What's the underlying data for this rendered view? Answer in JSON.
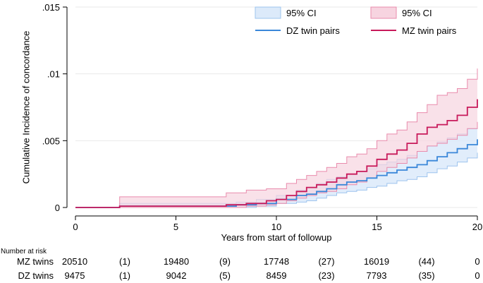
{
  "chart_data": {
    "type": "line",
    "title": "",
    "xlabel": "Years from start of followup",
    "ylabel": "Cumulative Incidence of concordance",
    "xlim": [
      0,
      20
    ],
    "ylim": [
      0,
      0.015
    ],
    "x_ticks": [
      {
        "value": 0,
        "label": "0"
      },
      {
        "value": 5,
        "label": "5"
      },
      {
        "value": 10,
        "label": "10"
      },
      {
        "value": 15,
        "label": "15"
      },
      {
        "value": 20,
        "label": "20"
      }
    ],
    "y_ticks": [
      {
        "value": 0,
        "label": "0"
      },
      {
        "value": 0.005,
        "label": ".005"
      },
      {
        "value": 0.01,
        "label": ".01"
      },
      {
        "value": 0.015,
        "label": ".015"
      }
    ],
    "grid": "horizontal",
    "legend_position": "top-right",
    "series": [
      {
        "key": "dz",
        "name": "DZ twin pairs",
        "ci_label": "95% CI",
        "line_color": "#3a87d9",
        "band_color": "#dceafa",
        "band_edge_color": "#9ec4ee",
        "x": [
          0,
          2.2,
          2.2,
          7,
          8,
          9,
          10,
          11,
          11.5,
          12,
          12.5,
          13,
          13.5,
          14,
          14.5,
          15,
          15.5,
          16,
          16.5,
          17,
          17.5,
          18,
          18.5,
          19,
          19.5,
          20
        ],
        "y": [
          0,
          0,
          0.0001,
          0.0001,
          0.0002,
          0.0003,
          0.0006,
          0.0009,
          0.001,
          0.0012,
          0.0014,
          0.0017,
          0.0019,
          0.002,
          0.0022,
          0.0024,
          0.0026,
          0.0028,
          0.003,
          0.0032,
          0.0035,
          0.0038,
          0.0041,
          0.0044,
          0.0047,
          0.0051
        ],
        "ci_lower": [
          0,
          0,
          0,
          0,
          0,
          0.0001,
          0.0003,
          0.0004,
          0.0005,
          0.0007,
          0.0009,
          0.0011,
          0.0012,
          0.0013,
          0.0015,
          0.0016,
          0.0018,
          0.002,
          0.0021,
          0.0023,
          0.0026,
          0.0029,
          0.0031,
          0.0034,
          0.0037,
          0.0041
        ],
        "ci_upper": [
          0,
          0,
          0.0003,
          0.0003,
          0.0004,
          0.0006,
          0.0009,
          0.0013,
          0.0015,
          0.0018,
          0.0021,
          0.0023,
          0.0025,
          0.0027,
          0.0029,
          0.0032,
          0.0034,
          0.0036,
          0.0039,
          0.0042,
          0.0046,
          0.0049,
          0.0052,
          0.0055,
          0.0059,
          0.0063
        ]
      },
      {
        "key": "mz",
        "name": "MZ twin pairs",
        "ci_label": "95% CI",
        "line_color": "#c8195a",
        "band_color": "#f7d4e0",
        "band_edge_color": "#e98bac",
        "x": [
          0,
          2.2,
          2.2,
          7,
          7.5,
          8.5,
          9.5,
          10,
          10.5,
          11,
          11.5,
          12,
          12.5,
          13,
          13.5,
          14,
          14.5,
          15,
          15.5,
          16,
          16.5,
          17,
          17.5,
          18,
          18.5,
          19,
          19.5,
          20
        ],
        "y": [
          0,
          0,
          0.0001,
          0.0001,
          0.0002,
          0.0003,
          0.0005,
          0.0006,
          0.0009,
          0.0012,
          0.0015,
          0.0017,
          0.0019,
          0.0022,
          0.0025,
          0.0027,
          0.0031,
          0.0036,
          0.004,
          0.0043,
          0.0048,
          0.0055,
          0.006,
          0.0062,
          0.0065,
          0.0069,
          0.0075,
          0.0081
        ],
        "ci_lower": [
          0,
          0,
          0,
          0,
          0,
          0.0001,
          0.0002,
          0.0003,
          0.0005,
          0.0007,
          0.0009,
          0.0011,
          0.0012,
          0.0014,
          0.0017,
          0.0019,
          0.0022,
          0.0027,
          0.003,
          0.0033,
          0.0037,
          0.0042,
          0.0046,
          0.0048,
          0.0051,
          0.0054,
          0.0059,
          0.0064
        ],
        "ci_upper": [
          0,
          0,
          0.0008,
          0.0008,
          0.0011,
          0.0013,
          0.0014,
          0.0014,
          0.0018,
          0.0021,
          0.0024,
          0.0027,
          0.003,
          0.0033,
          0.0038,
          0.004,
          0.0044,
          0.005,
          0.0055,
          0.0058,
          0.0064,
          0.0071,
          0.0077,
          0.0084,
          0.0086,
          0.0089,
          0.0096,
          0.0104
        ]
      }
    ]
  },
  "risk_table": {
    "heading": "Number at risk",
    "rows": [
      {
        "label": "MZ twins",
        "cells": [
          "20510",
          "(1)",
          "19480",
          "(9)",
          "17748",
          "(27)",
          "16019",
          "(44)",
          "0"
        ]
      },
      {
        "label": "DZ twins",
        "cells": [
          "9475",
          "(1)",
          "9042",
          "(5)",
          "8459",
          "(23)",
          "7793",
          "(35)",
          "0"
        ]
      }
    ]
  }
}
